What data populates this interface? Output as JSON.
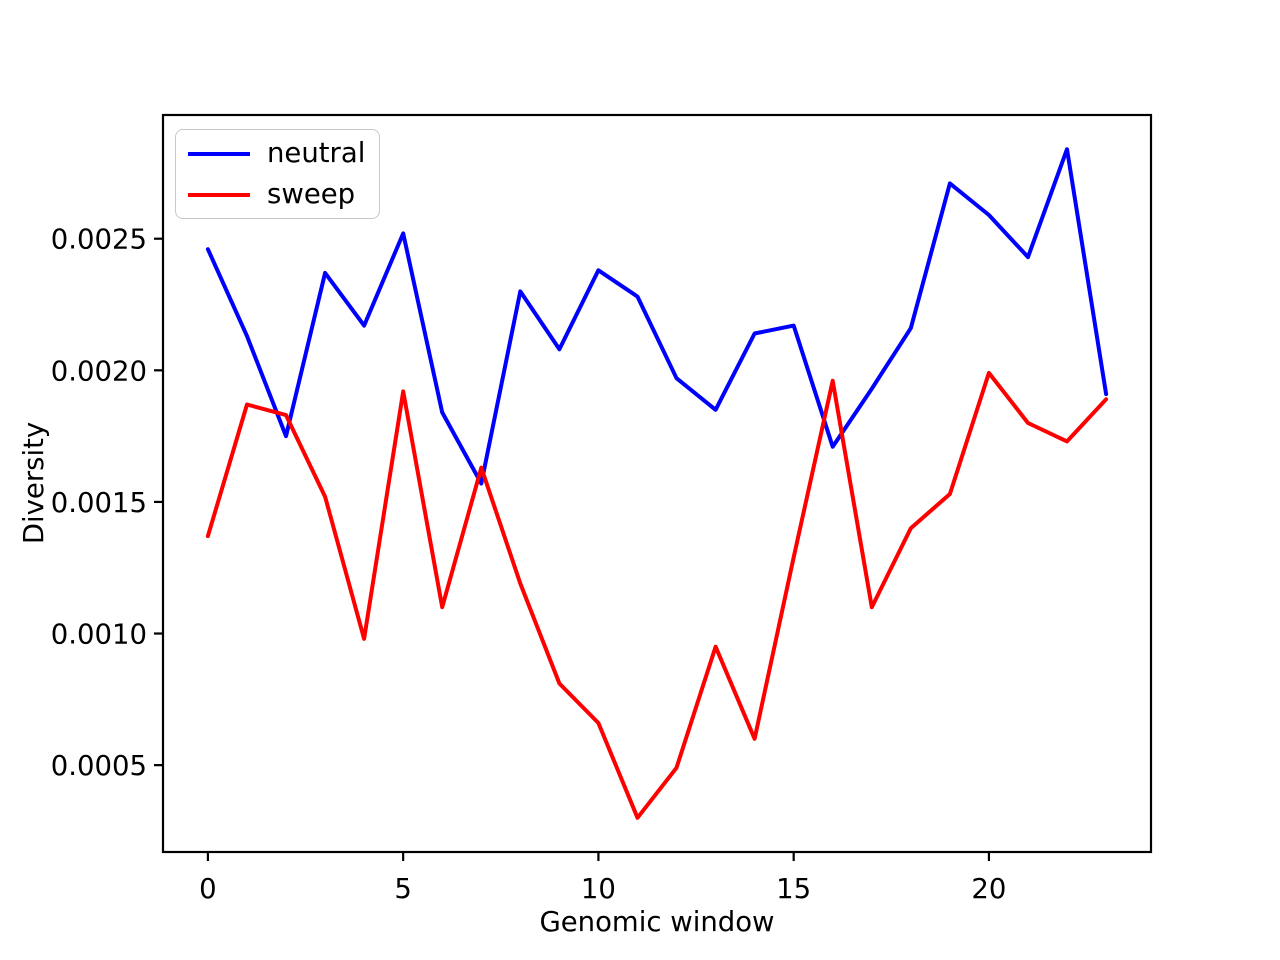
{
  "chart_data": {
    "type": "line",
    "title": "",
    "xlabel": "Genomic window",
    "ylabel": "Diversity",
    "grid": false,
    "legend_position": "upper left",
    "background_color": "#ffffff",
    "axis_color": "#000000",
    "x": [
      0,
      1,
      2,
      3,
      4,
      5,
      6,
      7,
      8,
      9,
      10,
      11,
      12,
      13,
      14,
      15,
      16,
      17,
      18,
      19,
      20,
      21,
      22,
      23
    ],
    "series": [
      {
        "name": "neutral",
        "color": "#0000ff",
        "values": [
          0.00246,
          0.00213,
          0.00175,
          0.00237,
          0.00217,
          0.00252,
          0.00184,
          0.00157,
          0.0023,
          0.00208,
          0.00238,
          0.00228,
          0.00197,
          0.00185,
          0.00214,
          0.00217,
          0.00171,
          0.00193,
          0.00216,
          0.00271,
          0.00259,
          0.00243,
          0.00284,
          0.00191
        ]
      },
      {
        "name": "sweep",
        "color": "#ff0000",
        "values": [
          0.00137,
          0.00187,
          0.00183,
          0.00152,
          0.00098,
          0.00192,
          0.0011,
          0.00163,
          0.00119,
          0.00081,
          0.00066,
          0.0003,
          0.00049,
          0.00095,
          0.0006,
          0.00129,
          0.00196,
          0.0011,
          0.0014,
          0.00153,
          0.00199,
          0.0018,
          0.00173,
          0.00189
        ]
      }
    ],
    "x_ticks": [
      0,
      5,
      10,
      15,
      20
    ],
    "x_tick_labels": [
      "0",
      "5",
      "10",
      "15",
      "20"
    ],
    "y_ticks": [
      0.0005,
      0.001,
      0.0015,
      0.002,
      0.0025
    ],
    "y_tick_labels": [
      "0.0005",
      "0.0010",
      "0.0015",
      "0.0020",
      "0.0025"
    ],
    "xlim": [
      -1.15,
      24.15
    ],
    "ylim": [
      0.00017,
      0.00297
    ]
  }
}
